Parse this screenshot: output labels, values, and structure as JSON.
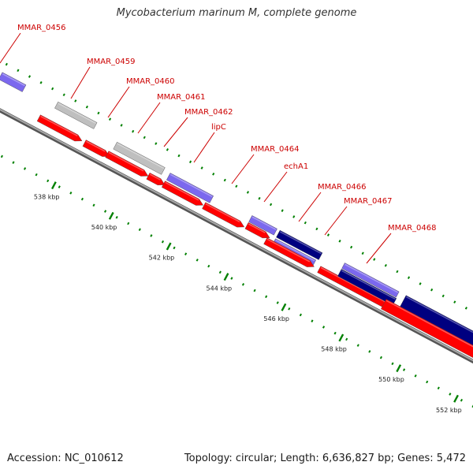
{
  "title": "Mycobacterium marinum M, complete genome",
  "footer": {
    "accession": "Accession: NC_010612",
    "stats": "Topology: circular; Length: 6,636,827 bp; Genes: 5,472"
  },
  "colors": {
    "cds_forward": "#ff0000",
    "gene_reverse": "#7b68ee",
    "gene_dark": "#000080",
    "pseudo_gray": "#bfbfbf",
    "label": "#cc0000",
    "tick": "#008000",
    "backbone": "#808080"
  },
  "axis": {
    "unit": "kbp",
    "ticks_labeled": [
      "538 kbp",
      "540 kbp",
      "542 kbp",
      "544 kbp",
      "546 kbp",
      "548 kbp",
      "550 kbp",
      "552 kbp"
    ]
  },
  "gene_labels": [
    "MMAR_0456",
    "MMAR_0459",
    "MMAR_0460",
    "MMAR_0461",
    "MMAR_0462",
    "lipC",
    "MMAR_0464",
    "echA1",
    "MMAR_0466",
    "MMAR_0467",
    "MMAR_0468"
  ]
}
